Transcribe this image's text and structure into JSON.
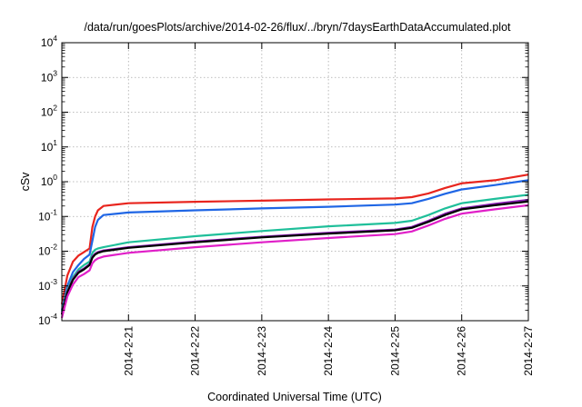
{
  "chart_data": {
    "type": "line",
    "title": "/data/run/goesPlots/archive/2014-02-26/flux/../bryn/7daysEarthDataAccumulated.plot",
    "xlabel": "Coordinated Universal Time (UTC)",
    "ylabel": "cSv",
    "xlim": [
      "2014-02-20",
      "2014-02-27"
    ],
    "x_ticks": [
      "2014-2-21",
      "2014-2-22",
      "2014-2-23",
      "2014-2-24",
      "2014-2-25",
      "2014-2-26",
      "2014-2-27"
    ],
    "y_scale": "log",
    "ylim": [
      0.0001,
      10000
    ],
    "y_ticks": [
      {
        "base": "10",
        "exp": "-4",
        "value": 0.0001
      },
      {
        "base": "10",
        "exp": "-3",
        "value": 0.001
      },
      {
        "base": "10",
        "exp": "-2",
        "value": 0.01
      },
      {
        "base": "10",
        "exp": "-1",
        "value": 0.1
      },
      {
        "base": "10",
        "exp": "0",
        "value": 1
      },
      {
        "base": "10",
        "exp": "1",
        "value": 10
      },
      {
        "base": "10",
        "exp": "2",
        "value": 100
      },
      {
        "base": "10",
        "exp": "3",
        "value": 1000
      },
      {
        "base": "10",
        "exp": "4",
        "value": 10000
      }
    ],
    "grid": true,
    "legend": "none",
    "series": [
      {
        "color": "#e8251e",
        "points": [
          [
            "2014-02-20 00:00",
            0.0003
          ],
          [
            "2014-02-20 02:00",
            0.002
          ],
          [
            "2014-02-20 04:00",
            0.005
          ],
          [
            "2014-02-20 06:00",
            0.0075
          ],
          [
            "2014-02-20 08:00",
            0.0095
          ],
          [
            "2014-02-20 10:00",
            0.012
          ],
          [
            "2014-02-20 11:00",
            0.05
          ],
          [
            "2014-02-20 12:00",
            0.1
          ],
          [
            "2014-02-20 13:00",
            0.15
          ],
          [
            "2014-02-20 15:00",
            0.2
          ],
          [
            "2014-02-21 00:00",
            0.24
          ],
          [
            "2014-02-22 00:00",
            0.265
          ],
          [
            "2014-02-23 00:00",
            0.285
          ],
          [
            "2014-02-24 00:00",
            0.31
          ],
          [
            "2014-02-25 00:00",
            0.33
          ],
          [
            "2014-02-25 06:00",
            0.36
          ],
          [
            "2014-02-25 12:00",
            0.46
          ],
          [
            "2014-02-25 18:00",
            0.66
          ],
          [
            "2014-02-26 00:00",
            0.9
          ],
          [
            "2014-02-26 12:00",
            1.1
          ],
          [
            "2014-02-27 00:00",
            1.6
          ]
        ]
      },
      {
        "color": "#1f66e5",
        "points": [
          [
            "2014-02-20 00:00",
            0.0002
          ],
          [
            "2014-02-20 02:00",
            0.001
          ],
          [
            "2014-02-20 04:00",
            0.0025
          ],
          [
            "2014-02-20 06:00",
            0.004
          ],
          [
            "2014-02-20 08:00",
            0.006
          ],
          [
            "2014-02-20 10:00",
            0.008
          ],
          [
            "2014-02-20 11:00",
            0.02
          ],
          [
            "2014-02-20 12:00",
            0.05
          ],
          [
            "2014-02-20 13:00",
            0.08
          ],
          [
            "2014-02-20 15:00",
            0.11
          ],
          [
            "2014-02-21 00:00",
            0.13
          ],
          [
            "2014-02-22 00:00",
            0.15
          ],
          [
            "2014-02-23 00:00",
            0.17
          ],
          [
            "2014-02-24 00:00",
            0.19
          ],
          [
            "2014-02-25 00:00",
            0.22
          ],
          [
            "2014-02-25 06:00",
            0.24
          ],
          [
            "2014-02-25 12:00",
            0.32
          ],
          [
            "2014-02-25 18:00",
            0.45
          ],
          [
            "2014-02-26 00:00",
            0.6
          ],
          [
            "2014-02-26 12:00",
            0.8
          ],
          [
            "2014-02-27 00:00",
            1.1
          ]
        ]
      },
      {
        "color": "#1fbf9a",
        "points": [
          [
            "2014-02-20 00:00",
            0.00018
          ],
          [
            "2014-02-20 02:00",
            0.0008
          ],
          [
            "2014-02-20 04:00",
            0.0018
          ],
          [
            "2014-02-20 06:00",
            0.003
          ],
          [
            "2014-02-20 08:00",
            0.004
          ],
          [
            "2014-02-20 10:00",
            0.005
          ],
          [
            "2014-02-20 11:00",
            0.009
          ],
          [
            "2014-02-20 12:00",
            0.011
          ],
          [
            "2014-02-20 13:00",
            0.012
          ],
          [
            "2014-02-20 15:00",
            0.013
          ],
          [
            "2014-02-21 00:00",
            0.018
          ],
          [
            "2014-02-22 00:00",
            0.027
          ],
          [
            "2014-02-23 00:00",
            0.038
          ],
          [
            "2014-02-24 00:00",
            0.052
          ],
          [
            "2014-02-25 00:00",
            0.065
          ],
          [
            "2014-02-25 06:00",
            0.075
          ],
          [
            "2014-02-25 12:00",
            0.11
          ],
          [
            "2014-02-25 18:00",
            0.17
          ],
          [
            "2014-02-26 00:00",
            0.24
          ],
          [
            "2014-02-26 12:00",
            0.32
          ],
          [
            "2014-02-27 00:00",
            0.42
          ]
        ]
      },
      {
        "color": "#8a1fb5",
        "points": [
          [
            "2014-02-20 00:00",
            0.00016
          ],
          [
            "2014-02-20 02:00",
            0.0007
          ],
          [
            "2014-02-20 04:00",
            0.0016
          ],
          [
            "2014-02-20 06:00",
            0.0026
          ],
          [
            "2014-02-20 08:00",
            0.0032
          ],
          [
            "2014-02-20 10:00",
            0.0042
          ],
          [
            "2014-02-20 11:00",
            0.007
          ],
          [
            "2014-02-20 12:00",
            0.0085
          ],
          [
            "2014-02-20 13:00",
            0.0095
          ],
          [
            "2014-02-20 15:00",
            0.0105
          ],
          [
            "2014-02-21 00:00",
            0.013
          ],
          [
            "2014-02-22 00:00",
            0.019
          ],
          [
            "2014-02-23 00:00",
            0.026
          ],
          [
            "2014-02-24 00:00",
            0.034
          ],
          [
            "2014-02-25 00:00",
            0.042
          ],
          [
            "2014-02-25 06:00",
            0.05
          ],
          [
            "2014-02-25 12:00",
            0.075
          ],
          [
            "2014-02-25 18:00",
            0.12
          ],
          [
            "2014-02-26 00:00",
            0.17
          ],
          [
            "2014-02-26 12:00",
            0.23
          ],
          [
            "2014-02-27 00:00",
            0.3
          ]
        ]
      },
      {
        "color": "#000000",
        "points": [
          [
            "2014-02-20 00:00",
            0.00015
          ],
          [
            "2014-02-20 02:00",
            0.00065
          ],
          [
            "2014-02-20 04:00",
            0.0015
          ],
          [
            "2014-02-20 06:00",
            0.0024
          ],
          [
            "2014-02-20 08:00",
            0.003
          ],
          [
            "2014-02-20 10:00",
            0.004
          ],
          [
            "2014-02-20 11:00",
            0.0065
          ],
          [
            "2014-02-20 12:00",
            0.008
          ],
          [
            "2014-02-20 13:00",
            0.009
          ],
          [
            "2014-02-20 15:00",
            0.01
          ],
          [
            "2014-02-21 00:00",
            0.0125
          ],
          [
            "2014-02-22 00:00",
            0.018
          ],
          [
            "2014-02-23 00:00",
            0.025
          ],
          [
            "2014-02-24 00:00",
            0.032
          ],
          [
            "2014-02-25 00:00",
            0.04
          ],
          [
            "2014-02-25 06:00",
            0.047
          ],
          [
            "2014-02-25 12:00",
            0.07
          ],
          [
            "2014-02-25 18:00",
            0.11
          ],
          [
            "2014-02-26 00:00",
            0.16
          ],
          [
            "2014-02-26 12:00",
            0.21
          ],
          [
            "2014-02-27 00:00",
            0.27
          ]
        ]
      },
      {
        "color": "#e01fc8",
        "points": [
          [
            "2014-02-20 00:00",
            0.00012
          ],
          [
            "2014-02-20 02:00",
            0.0005
          ],
          [
            "2014-02-20 04:00",
            0.0011
          ],
          [
            "2014-02-20 06:00",
            0.0018
          ],
          [
            "2014-02-20 08:00",
            0.0022
          ],
          [
            "2014-02-20 10:00",
            0.0028
          ],
          [
            "2014-02-20 11:00",
            0.0045
          ],
          [
            "2014-02-20 12:00",
            0.0055
          ],
          [
            "2014-02-20 13:00",
            0.0062
          ],
          [
            "2014-02-20 15:00",
            0.007
          ],
          [
            "2014-02-21 00:00",
            0.009
          ],
          [
            "2014-02-22 00:00",
            0.013
          ],
          [
            "2014-02-23 00:00",
            0.018
          ],
          [
            "2014-02-24 00:00",
            0.024
          ],
          [
            "2014-02-25 00:00",
            0.031
          ],
          [
            "2014-02-25 06:00",
            0.037
          ],
          [
            "2014-02-25 12:00",
            0.055
          ],
          [
            "2014-02-25 18:00",
            0.085
          ],
          [
            "2014-02-26 00:00",
            0.12
          ],
          [
            "2014-02-26 12:00",
            0.16
          ],
          [
            "2014-02-27 00:00",
            0.21
          ]
        ]
      }
    ]
  }
}
